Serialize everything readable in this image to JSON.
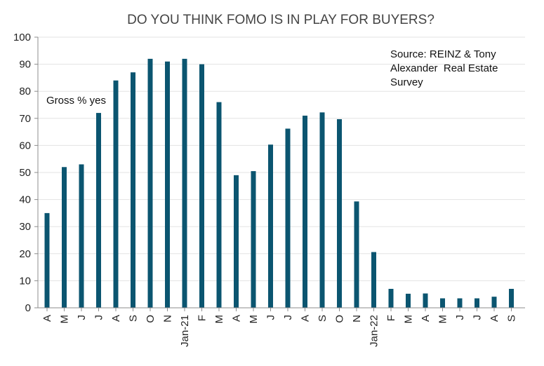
{
  "chart_data": {
    "type": "bar",
    "title": "DO YOU THINK FOMO IS IN PLAY FOR BUYERS?",
    "xlabel": "",
    "ylabel": "",
    "ylim": [
      0,
      100
    ],
    "yticks": [
      0,
      10,
      20,
      30,
      40,
      50,
      60,
      70,
      80,
      90,
      100
    ],
    "grid": true,
    "categories": [
      "A",
      "M",
      "J",
      "J",
      "A",
      "S",
      "O",
      "N",
      "Jan-21",
      "F",
      "M",
      "A",
      "M",
      "J",
      "J",
      "A",
      "S",
      "O",
      "N",
      "Jan-22",
      "F",
      "M",
      "A",
      "M",
      "J",
      "J",
      "A",
      "S"
    ],
    "series": [
      {
        "name": "Gross % yes",
        "color": "#0b5570",
        "values": [
          35,
          52,
          53,
          72,
          84,
          87,
          92,
          91,
          92,
          90,
          76,
          49,
          50.5,
          60.3,
          66.2,
          71,
          72.2,
          69.7,
          39.3,
          20.6,
          7,
          5.2,
          5.3,
          3.5,
          3.5,
          3.5,
          4.1,
          7
        ]
      }
    ],
    "annotations": {
      "series_label": "Gross % yes",
      "source_lines": [
        "Source: REINZ & Tony",
        "Alexander  Real Estate",
        "Survey"
      ]
    }
  }
}
